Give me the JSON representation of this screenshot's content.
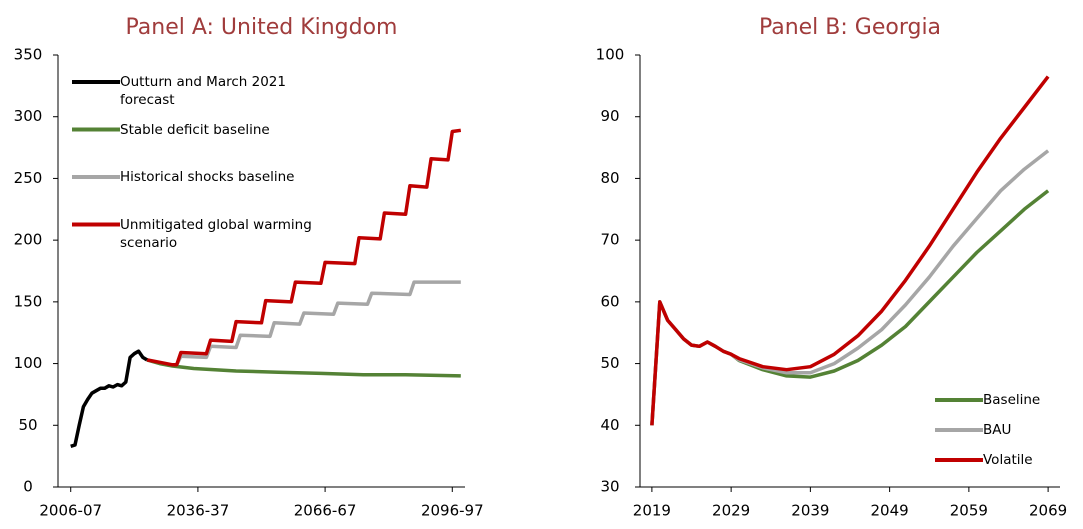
{
  "chart_data": [
    {
      "type": "line",
      "title": "Panel A: United Kingdom",
      "xlim": [
        2003,
        2099
      ],
      "xticks": [
        {
          "value": 2006,
          "label": "2006-07"
        },
        {
          "value": 2036,
          "label": "2036-37"
        },
        {
          "value": 2066,
          "label": "2066-67"
        },
        {
          "value": 2096,
          "label": "2096-97"
        }
      ],
      "ylim": [
        0,
        350
      ],
      "yticks": [
        0,
        50,
        100,
        150,
        200,
        250,
        300,
        350
      ],
      "legend": "upper left",
      "series": [
        {
          "name": "Outturn and March 2021 forecast",
          "color": "#000000",
          "x": [
            2006,
            2007,
            2008,
            2009,
            2010,
            2011,
            2012,
            2013,
            2014,
            2015,
            2016,
            2017,
            2018,
            2019,
            2020,
            2021,
            2022,
            2023,
            2024
          ],
          "values": [
            33,
            34,
            50,
            65,
            71,
            76,
            78,
            80,
            80,
            82,
            81,
            83,
            82,
            85,
            105,
            108,
            110,
            105,
            103
          ]
        },
        {
          "name": "Stable deficit baseline",
          "color": "#548235",
          "x": [
            2024,
            2027,
            2030,
            2035,
            2045,
            2055,
            2065,
            2075,
            2085,
            2098
          ],
          "values": [
            103,
            100,
            98,
            96,
            94,
            93,
            92,
            91,
            91,
            90
          ]
        },
        {
          "name": "Historical shocks baseline",
          "color": "#a6a6a6",
          "x": [
            2030,
            2031,
            2032,
            2038,
            2039,
            2045,
            2046,
            2053,
            2054,
            2060,
            2061,
            2068,
            2069,
            2076,
            2077,
            2086,
            2087,
            2098
          ],
          "values": [
            99,
            99,
            106,
            105,
            114,
            113,
            123,
            122,
            133,
            132,
            141,
            140,
            149,
            148,
            157,
            156,
            166,
            166
          ]
        },
        {
          "name": "Unmitigated global warming scenario",
          "color": "#c00000",
          "x": [
            2024,
            2027,
            2030,
            2031,
            2032,
            2038,
            2039,
            2044,
            2045,
            2051,
            2052,
            2058,
            2059,
            2065,
            2066,
            2073,
            2074,
            2079,
            2080,
            2085,
            2086,
            2090,
            2091,
            2095,
            2096,
            2098
          ],
          "values": [
            103,
            101,
            99,
            99,
            109,
            108,
            119,
            118,
            134,
            133,
            151,
            150,
            166,
            165,
            182,
            181,
            202,
            201,
            222,
            221,
            244,
            243,
            266,
            265,
            288,
            289
          ]
        }
      ]
    },
    {
      "type": "line",
      "title": "Panel B: Georgia",
      "xlim": [
        2017.5,
        2070.5
      ],
      "xticks": [
        2019,
        2029,
        2039,
        2049,
        2059,
        2069
      ],
      "ylim": [
        30,
        100
      ],
      "yticks": [
        30,
        40,
        50,
        60,
        70,
        80,
        90,
        100
      ],
      "legend": "lower right",
      "series": [
        {
          "name": "Baseline",
          "color": "#548235",
          "x": [
            2019,
            2020,
            2021,
            2022,
            2023,
            2024,
            2025,
            2026,
            2027,
            2028,
            2029,
            2030,
            2033,
            2036,
            2039,
            2042,
            2045,
            2048,
            2051,
            2054,
            2057,
            2060,
            2063,
            2066,
            2069
          ],
          "values": [
            40,
            60,
            57,
            55.5,
            54,
            53,
            52.8,
            53.5,
            52.8,
            52,
            51.5,
            50.5,
            49,
            48,
            47.8,
            48.8,
            50.5,
            53,
            56,
            60,
            64,
            68,
            71.5,
            75,
            78
          ]
        },
        {
          "name": "BAU",
          "color": "#a6a6a6",
          "x": [
            2019,
            2020,
            2021,
            2022,
            2023,
            2024,
            2025,
            2026,
            2027,
            2028,
            2029,
            2030,
            2033,
            2036,
            2039,
            2042,
            2045,
            2048,
            2051,
            2054,
            2057,
            2060,
            2063,
            2066,
            2069
          ],
          "values": [
            40,
            60,
            57,
            55.5,
            54,
            53,
            52.8,
            53.5,
            52.8,
            52,
            51.5,
            50.6,
            49.3,
            48.5,
            48.5,
            50,
            52.5,
            55.5,
            59.5,
            64,
            69,
            73.5,
            78,
            81.5,
            84.5
          ]
        },
        {
          "name": "Volatile",
          "color": "#c00000",
          "x": [
            2019,
            2020,
            2021,
            2022,
            2023,
            2024,
            2025,
            2026,
            2027,
            2028,
            2029,
            2030,
            2033,
            2036,
            2039,
            2042,
            2045,
            2048,
            2051,
            2054,
            2057,
            2060,
            2063,
            2066,
            2069
          ],
          "values": [
            40,
            60,
            57,
            55.5,
            54,
            53,
            52.8,
            53.5,
            52.8,
            52,
            51.5,
            50.8,
            49.5,
            49,
            49.5,
            51.5,
            54.5,
            58.5,
            63.5,
            69,
            75,
            81,
            86.5,
            91.5,
            96.5
          ]
        }
      ]
    }
  ]
}
